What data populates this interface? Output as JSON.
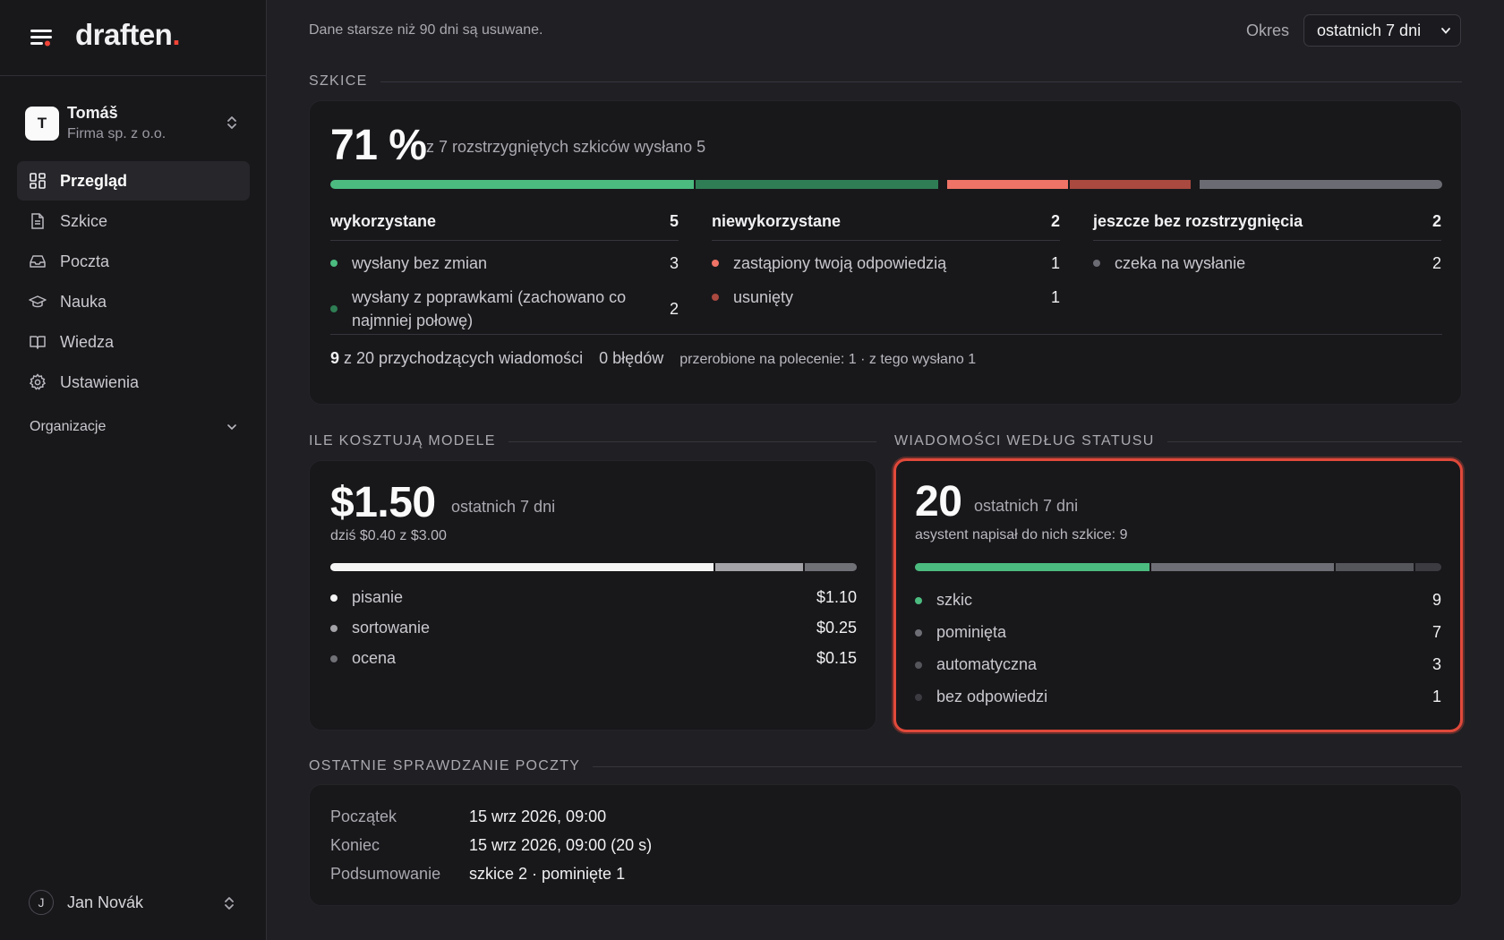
{
  "app": {
    "brand": "draften",
    "brand_dot": "."
  },
  "account": {
    "initial": "T",
    "name": "Tomáš",
    "company": "Firma sp. z o.o."
  },
  "nav": {
    "items": [
      {
        "label": "Przegląd",
        "icon": "dashboard-icon",
        "active": true
      },
      {
        "label": "Szkice",
        "icon": "document-icon",
        "active": false
      },
      {
        "label": "Poczta",
        "icon": "inbox-icon",
        "active": false
      },
      {
        "label": "Nauka",
        "icon": "graduation-cap-icon",
        "active": false
      },
      {
        "label": "Wiedza",
        "icon": "book-icon",
        "active": false
      },
      {
        "label": "Ustawienia",
        "icon": "gear-icon",
        "active": false
      }
    ]
  },
  "org": {
    "label": "Organizacje"
  },
  "user": {
    "initial": "J",
    "name": "Jan Novák"
  },
  "header": {
    "retention": "Dane starsze niż 90 dni są usuwane.",
    "period_label": "Okres",
    "period_value": "ostatnich 7 dni"
  },
  "drafts": {
    "title": "SZKICE",
    "percent": "71 %",
    "caption": "z 7 rozstrzygniętych szkiców wysłano 5",
    "bar": [
      {
        "value": 3,
        "color": "#4cbb7f"
      },
      {
        "value": 2,
        "color": "#2f7d54"
      },
      {
        "value": 1,
        "color": "#ef7366"
      },
      {
        "value": 1,
        "color": "#a9493f"
      },
      {
        "value": 2,
        "color": "#6b6b73"
      }
    ],
    "groups": [
      {
        "title": "wykorzystane",
        "count": "5",
        "rows": [
          {
            "label": "wysłany bez zmian",
            "count": "3",
            "color": "#4cbb7f"
          },
          {
            "label": "wysłany z poprawkami (zachowano co najmniej połowę)",
            "count": "2",
            "color": "#2f7d54"
          }
        ]
      },
      {
        "title": "niewykorzystane",
        "count": "2",
        "rows": [
          {
            "label": "zastąpiony twoją odpowiedzią",
            "count": "1",
            "color": "#ef7366"
          },
          {
            "label": "usunięty",
            "count": "1",
            "color": "#a9493f"
          }
        ]
      },
      {
        "title": "jeszcze bez rozstrzygnięcia",
        "count": "2",
        "rows": [
          {
            "label": "czeka na wysłanie",
            "count": "2",
            "color": "#6b6b73"
          }
        ]
      }
    ],
    "summary": {
      "count": "9",
      "incoming": "z 20 przychodzących wiadomości",
      "errors": "0 błędów",
      "redone": "przerobione na polecenie: 1 · z tego wysłano 1"
    }
  },
  "costs": {
    "title": "ILE KOSZTUJĄ MODELE",
    "total": "$1.50",
    "period": "ostatnich 7 dni",
    "today": "dziś $0.40 z $3.00",
    "items": [
      {
        "label": "pisanie",
        "value": "$1.10",
        "amount": 1.1,
        "color": "#f5f5f5"
      },
      {
        "label": "sortowanie",
        "value": "$0.25",
        "amount": 0.25,
        "color": "#a3a3a8"
      },
      {
        "label": "ocena",
        "value": "$0.15",
        "amount": 0.15,
        "color": "#707077"
      }
    ]
  },
  "status": {
    "title": "WIADOMOŚCI WEDŁUG STATUSU",
    "total": "20",
    "period": "ostatnich 7 dni",
    "note": "asystent napisał do nich szkice: 9",
    "items": [
      {
        "label": "szkic",
        "count": "9",
        "value": 9,
        "color": "#4cbb7f"
      },
      {
        "label": "pominięta",
        "count": "7",
        "value": 7,
        "color": "#6e6e76"
      },
      {
        "label": "automatyczna",
        "count": "3",
        "value": 3,
        "color": "#55555c"
      },
      {
        "label": "bez odpowiedzi",
        "count": "1",
        "value": 1,
        "color": "#3b3b41"
      }
    ],
    "highlight_color": "#e0493a"
  },
  "mailcheck": {
    "title": "OSTATNIE SPRAWDZANIE POCZTY",
    "rows": [
      {
        "key": "Początek",
        "value": "15 wrz 2026, 09:00"
      },
      {
        "key": "Koniec",
        "value": "15 wrz 2026, 09:00 (20 s)"
      },
      {
        "key": "Podsumowanie",
        "value": "szkice 2 · pominięte 1"
      }
    ]
  }
}
